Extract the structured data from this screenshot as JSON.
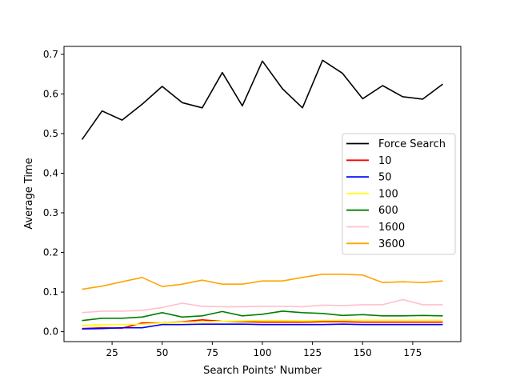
{
  "chart_data": {
    "type": "line",
    "title": "",
    "xlabel": "Search Points' Number",
    "ylabel": "Average Time",
    "xlim": [
      1,
      199
    ],
    "ylim": [
      -0.025,
      0.72
    ],
    "xticks": [
      25,
      50,
      75,
      100,
      125,
      150,
      175
    ],
    "yticks": [
      0.0,
      0.1,
      0.2,
      0.3,
      0.4,
      0.5,
      0.6,
      0.7
    ],
    "grid": false,
    "legend_position": "center-right",
    "x": [
      10,
      20,
      30,
      40,
      50,
      60,
      70,
      80,
      90,
      100,
      110,
      120,
      130,
      140,
      150,
      160,
      170,
      180,
      190
    ],
    "series": [
      {
        "name": "Force Search",
        "color": "#000000",
        "values": [
          0.485,
          0.557,
          0.534,
          0.574,
          0.619,
          0.578,
          0.565,
          0.654,
          0.57,
          0.683,
          0.613,
          0.565,
          0.685,
          0.652,
          0.588,
          0.621,
          0.593,
          0.587,
          0.625
        ]
      },
      {
        "name": "10",
        "color": "#ff0000",
        "values": [
          0.008,
          0.01,
          0.009,
          0.022,
          0.022,
          0.025,
          0.03,
          0.026,
          0.025,
          0.024,
          0.024,
          0.024,
          0.025,
          0.025,
          0.024,
          0.024,
          0.024,
          0.024,
          0.024
        ]
      },
      {
        "name": "50",
        "color": "#0000ff",
        "values": [
          0.007,
          0.008,
          0.01,
          0.01,
          0.018,
          0.018,
          0.019,
          0.019,
          0.019,
          0.018,
          0.018,
          0.018,
          0.018,
          0.019,
          0.018,
          0.018,
          0.018,
          0.018,
          0.018
        ]
      },
      {
        "name": "100",
        "color": "#ffff00",
        "values": [
          0.016,
          0.018,
          0.018,
          0.019,
          0.022,
          0.024,
          0.025,
          0.026,
          0.027,
          0.028,
          0.028,
          0.027,
          0.028,
          0.029,
          0.029,
          0.029,
          0.029,
          0.029,
          0.029
        ]
      },
      {
        "name": "600",
        "color": "#008000",
        "values": [
          0.028,
          0.034,
          0.034,
          0.037,
          0.048,
          0.037,
          0.04,
          0.051,
          0.04,
          0.044,
          0.052,
          0.048,
          0.046,
          0.041,
          0.043,
          0.04,
          0.04,
          0.041,
          0.04
        ]
      },
      {
        "name": "1600",
        "color": "#ffc0cb",
        "values": [
          0.048,
          0.052,
          0.052,
          0.054,
          0.061,
          0.072,
          0.064,
          0.063,
          0.063,
          0.064,
          0.064,
          0.063,
          0.067,
          0.066,
          0.068,
          0.068,
          0.081,
          0.068,
          0.068
        ]
      },
      {
        "name": "3600",
        "color": "#ffa500",
        "values": [
          0.107,
          0.115,
          0.126,
          0.137,
          0.114,
          0.12,
          0.13,
          0.12,
          0.12,
          0.128,
          0.128,
          0.137,
          0.145,
          0.145,
          0.143,
          0.124,
          0.126,
          0.124,
          0.128
        ]
      }
    ]
  }
}
